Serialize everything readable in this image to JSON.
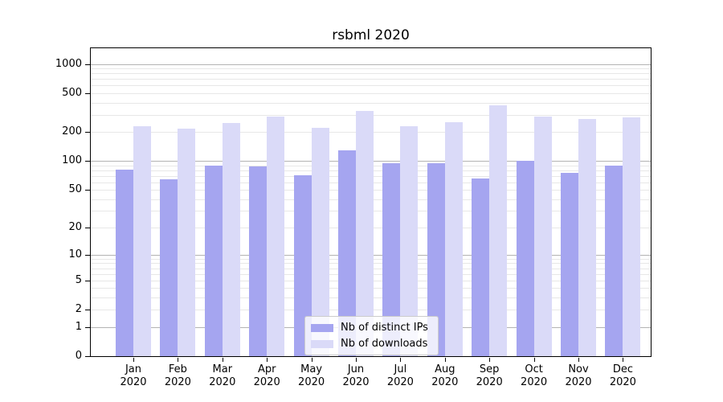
{
  "chart_data": {
    "type": "bar",
    "title": "rsbml 2020",
    "categories": [
      "Jan",
      "Feb",
      "Mar",
      "Apr",
      "May",
      "Jun",
      "Jul",
      "Aug",
      "Sep",
      "Oct",
      "Nov",
      "Dec"
    ],
    "category_year": "2020",
    "series": [
      {
        "name": "Nb of distinct IPs",
        "color": "#a5a5f0",
        "values": [
          81,
          64,
          90,
          88,
          71,
          130,
          95,
          95,
          66,
          100,
          75,
          90
        ]
      },
      {
        "name": "Nb of downloads",
        "color": "#dadaf8",
        "values": [
          228,
          216,
          245,
          290,
          222,
          330,
          230,
          250,
          375,
          286,
          273,
          280
        ]
      }
    ],
    "xlabel": "",
    "ylabel": "",
    "yscale": "log1p",
    "ylim": [
      0,
      1450
    ],
    "ytick_labels": [
      "1000",
      "500",
      "200",
      "100",
      "50",
      "20",
      "10",
      "5",
      "2",
      "1",
      "0"
    ],
    "ytick_values": [
      1000,
      500,
      200,
      100,
      50,
      20,
      10,
      5,
      2,
      1,
      0
    ],
    "major_gridlines": [
      1,
      10,
      100,
      1000
    ],
    "minor_gridlines": [
      2,
      3,
      4,
      5,
      6,
      7,
      8,
      9,
      20,
      30,
      40,
      50,
      60,
      70,
      80,
      90,
      200,
      300,
      400,
      500,
      600,
      700,
      800,
      900
    ],
    "grid": true,
    "legend_position": "lower center",
    "colors": {
      "major_grid": "#b3b3b3",
      "minor_grid": "#e7e7e7",
      "axis": "#000000",
      "text": "#000000",
      "legend_border": "#cccccc"
    }
  }
}
